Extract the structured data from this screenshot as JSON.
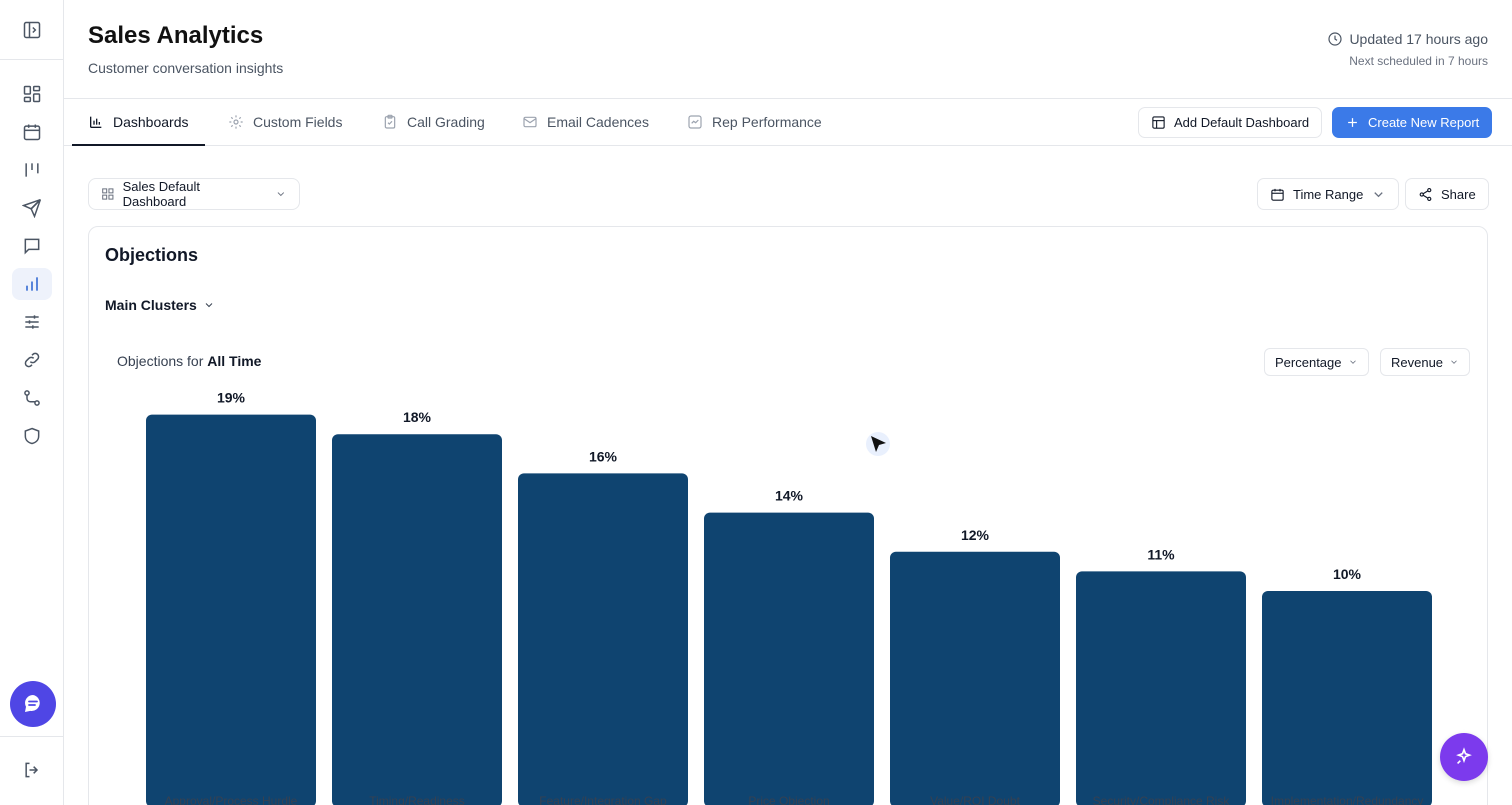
{
  "header": {
    "title": "Sales Analytics",
    "subtitle": "Customer conversation insights",
    "updated": "Updated 17 hours ago",
    "next_scheduled": "Next scheduled in 7 hours"
  },
  "tabs": [
    {
      "label": "Dashboards",
      "icon": "bar-chart-icon",
      "active": true
    },
    {
      "label": "Custom Fields",
      "icon": "gear-icon",
      "active": false
    },
    {
      "label": "Call Grading",
      "icon": "clipboard-icon",
      "active": false
    },
    {
      "label": "Email Cadences",
      "icon": "mail-icon",
      "active": false
    },
    {
      "label": "Rep Performance",
      "icon": "trend-icon",
      "active": false
    }
  ],
  "actions": {
    "add_default": "Add Default Dashboard",
    "create_report": "Create New Report"
  },
  "toolbar": {
    "dashboard_select": "Sales Default Dashboard",
    "time_range": "Time Range",
    "share": "Share"
  },
  "card": {
    "title": "Objections",
    "clusters": "Main Clusters",
    "objections_prefix": "Objections for",
    "objections_period": "All Time",
    "metric_select": "Percentage",
    "measure_select": "Revenue"
  },
  "sidebar": {
    "items": [
      "panel-toggle-icon",
      "dashboard-icon",
      "calendar-icon",
      "pipeline-icon",
      "send-icon",
      "message-icon",
      "analytics-icon",
      "sliders-icon",
      "link-icon",
      "git-branch-icon",
      "shield-icon"
    ],
    "active": "analytics-icon"
  },
  "colors": {
    "bar": "#0f4470",
    "primary": "#3b7ae8",
    "fab": "#7c3aed",
    "chat": "#4f46e5"
  },
  "chart_data": {
    "type": "bar",
    "categories": [
      "Approval/Process Hurdle",
      "Timing/Readiness",
      "Feature/Integration Gap",
      "Price Objection",
      "Value/ROI Doubt",
      "Security/Compliance Risk",
      "Implementation/Redundancy"
    ],
    "values": [
      19,
      18,
      16,
      14,
      12,
      11,
      10
    ],
    "data_labels": [
      "19%",
      "18%",
      "16%",
      "14%",
      "12%",
      "11%",
      "10%"
    ],
    "title": "",
    "xlabel": "",
    "ylabel": "",
    "grid": false
  }
}
